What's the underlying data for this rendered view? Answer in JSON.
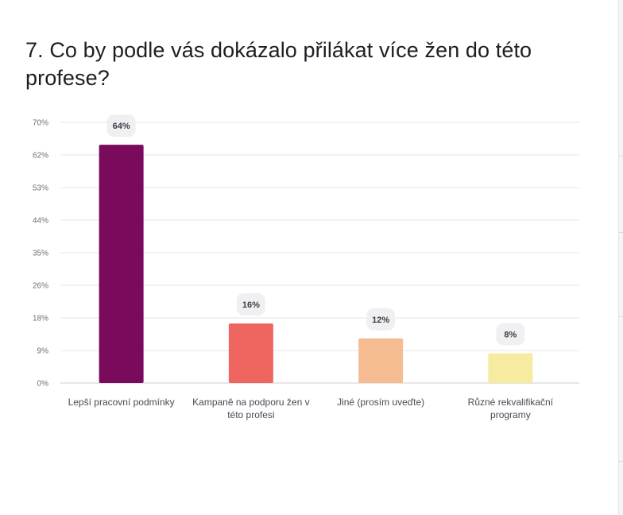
{
  "question": {
    "title": "7. Co by podle vás dokázalo přilákat více žen do této profese?"
  },
  "chart_data": {
    "type": "bar",
    "title": "",
    "xlabel": "",
    "ylabel": "",
    "ylim": [
      0,
      70
    ],
    "y_ticks": [
      "0%",
      "9%",
      "18%",
      "26%",
      "35%",
      "44%",
      "53%",
      "62%",
      "70%"
    ],
    "grid": true,
    "categories": [
      [
        "Lepší pracovní podmínky"
      ],
      [
        "Kampaně na podporu žen v",
        "této profesi"
      ],
      [
        "Jiné (prosím uveďte)"
      ],
      [
        "Různé rekvalifikační",
        "programy"
      ]
    ],
    "values": [
      64,
      16,
      12,
      8
    ],
    "data_labels": [
      "64%",
      "16%",
      "12%",
      "8%"
    ],
    "colors": [
      "#7a0b5c",
      "#ef6660",
      "#f5bc92",
      "#f6eba0"
    ],
    "grid_color": "#e6e6ea",
    "label_bubble_color": "#f0f0f2"
  }
}
